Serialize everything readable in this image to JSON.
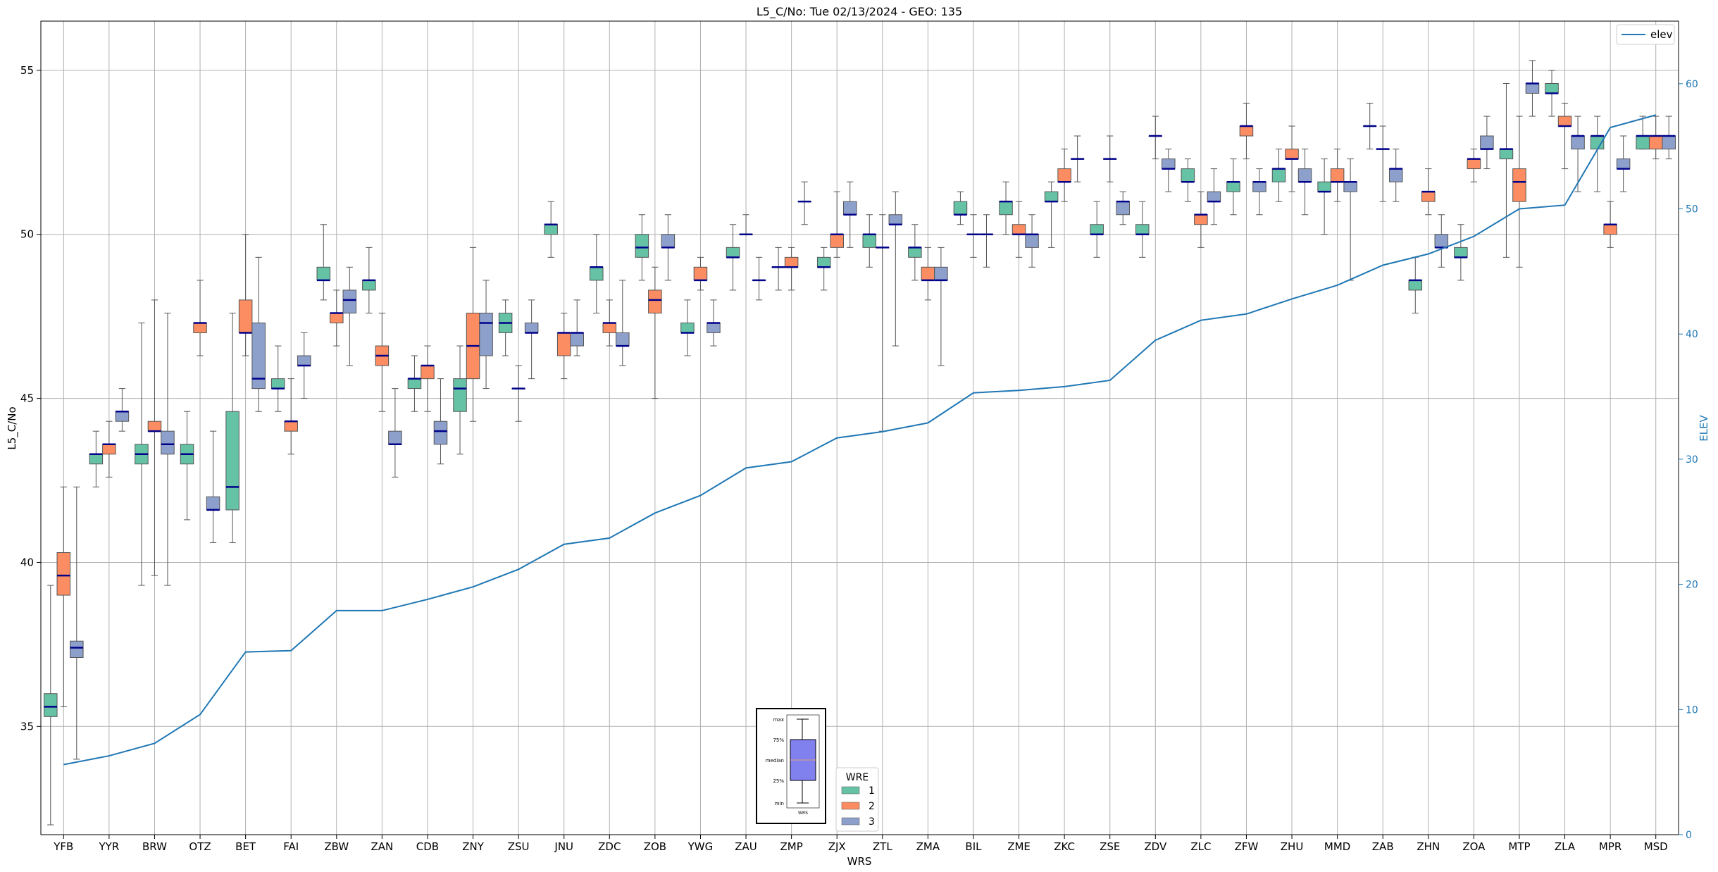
{
  "chart_data": {
    "type": "box",
    "title": "L5_C/No: Tue 02/13/2024 - GEO: 135",
    "xlabel": "WRS",
    "ylabel": "L5_C/No",
    "y2label": "ELEV",
    "ylim": [
      31.7,
      56.5
    ],
    "y2lim": [
      0,
      65
    ],
    "yticks": [
      35,
      40,
      45,
      50,
      55
    ],
    "y2ticks": [
      0,
      10,
      20,
      30,
      40,
      50,
      60
    ],
    "grid": true,
    "colors": {
      "1": "#66c2a5",
      "2": "#fc8d62",
      "3": "#8da0cb",
      "median": "#00008b",
      "elev": "#1f77b4"
    },
    "categories": [
      "YFB",
      "YYR",
      "BRW",
      "OTZ",
      "BET",
      "FAI",
      "ZBW",
      "ZAN",
      "CDB",
      "ZNY",
      "ZSU",
      "JNU",
      "ZDC",
      "ZOB",
      "YWG",
      "ZAU",
      "ZMP",
      "ZJX",
      "ZTL",
      "ZMA",
      "BIL",
      "ZME",
      "ZKC",
      "ZSE",
      "ZDV",
      "ZLC",
      "ZFW",
      "ZHU",
      "MMD",
      "ZAB",
      "ZHN",
      "ZOA",
      "MTP",
      "ZLA",
      "MPR",
      "MSD"
    ],
    "legend_hue": {
      "title": "WRE",
      "entries": [
        "1",
        "2",
        "3"
      ],
      "position": "bottom-center"
    },
    "legend_line": {
      "entries": [
        "elev"
      ],
      "position": "top-right"
    },
    "box_key": {
      "labels": [
        "max",
        "75%",
        "median",
        "25%",
        "min"
      ],
      "xlabel": "WRS"
    },
    "boxes": [
      [
        [
          32.0,
          35.3,
          35.6,
          36.0,
          39.3
        ],
        [
          35.6,
          39.0,
          39.6,
          40.3,
          42.3
        ],
        [
          34.0,
          37.1,
          37.4,
          37.6,
          42.3
        ]
      ],
      [
        [
          42.3,
          43.0,
          43.3,
          43.3,
          44.0
        ],
        [
          42.6,
          43.3,
          43.6,
          43.6,
          44.3
        ],
        [
          44.0,
          44.3,
          44.6,
          44.6,
          45.3
        ]
      ],
      [
        [
          39.3,
          43.0,
          43.3,
          43.6,
          47.3
        ],
        [
          39.6,
          44.0,
          44.0,
          44.3,
          48.0
        ],
        [
          39.3,
          43.3,
          43.6,
          44.0,
          47.6
        ]
      ],
      [
        [
          41.3,
          43.0,
          43.3,
          43.6,
          44.6
        ],
        [
          46.3,
          47.0,
          47.3,
          47.3,
          48.6
        ],
        [
          40.6,
          41.6,
          41.6,
          42.0,
          44.0
        ]
      ],
      [
        [
          40.6,
          41.6,
          42.3,
          44.6,
          47.6
        ],
        [
          46.3,
          47.0,
          47.0,
          48.0,
          50.0
        ],
        [
          44.6,
          45.3,
          45.6,
          47.3,
          49.3
        ]
      ],
      [
        [
          44.6,
          45.3,
          45.3,
          45.6,
          46.6
        ],
        [
          43.3,
          44.0,
          44.3,
          44.3,
          45.6
        ],
        [
          45.0,
          46.0,
          46.0,
          46.3,
          47.0
        ]
      ],
      [
        [
          48.0,
          48.6,
          48.6,
          49.0,
          50.3
        ],
        [
          46.6,
          47.3,
          47.6,
          47.6,
          48.3
        ],
        [
          46.0,
          47.6,
          48.0,
          48.3,
          49.0
        ]
      ],
      [
        [
          47.6,
          48.3,
          48.6,
          48.6,
          49.6
        ],
        [
          44.6,
          46.0,
          46.3,
          46.6,
          47.6
        ],
        [
          42.6,
          43.6,
          43.6,
          44.0,
          45.3
        ]
      ],
      [
        [
          44.6,
          45.3,
          45.6,
          45.6,
          46.3
        ],
        [
          44.6,
          45.6,
          46.0,
          46.0,
          46.6
        ],
        [
          43.0,
          43.6,
          44.0,
          44.3,
          45.6
        ]
      ],
      [
        [
          43.3,
          44.6,
          45.3,
          45.6,
          46.6
        ],
        [
          44.3,
          45.6,
          46.6,
          47.6,
          49.6
        ],
        [
          45.3,
          46.3,
          47.3,
          47.6,
          48.6
        ]
      ],
      [
        [
          46.3,
          47.0,
          47.3,
          47.6,
          48.0
        ],
        [
          44.3,
          45.3,
          45.3,
          45.3,
          46.0
        ],
        [
          45.6,
          47.0,
          47.0,
          47.3,
          48.0
        ]
      ],
      [
        [
          49.3,
          50.0,
          50.3,
          50.3,
          51.0
        ],
        [
          45.6,
          46.3,
          47.0,
          47.0,
          47.6
        ],
        [
          46.3,
          46.6,
          47.0,
          47.0,
          48.0
        ]
      ],
      [
        [
          47.6,
          48.6,
          49.0,
          49.0,
          50.0
        ],
        [
          46.6,
          47.0,
          47.3,
          47.3,
          48.0
        ],
        [
          46.0,
          46.6,
          46.6,
          47.0,
          48.6
        ]
      ],
      [
        [
          48.6,
          49.3,
          49.6,
          50.0,
          50.6
        ],
        [
          45.0,
          47.6,
          48.0,
          48.3,
          49.0
        ],
        [
          48.6,
          49.6,
          49.6,
          50.0,
          50.6
        ]
      ],
      [
        [
          46.3,
          47.0,
          47.0,
          47.3,
          48.0
        ],
        [
          48.3,
          48.6,
          48.6,
          49.0,
          49.3
        ],
        [
          46.6,
          47.0,
          47.3,
          47.3,
          48.0
        ]
      ],
      [
        [
          48.3,
          49.3,
          49.3,
          49.6,
          50.3
        ],
        [
          50.0,
          50.0,
          50.0,
          50.0,
          50.6
        ],
        [
          48.0,
          48.6,
          48.6,
          48.6,
          49.3
        ]
      ],
      [
        [
          48.3,
          49.0,
          49.0,
          49.0,
          49.6
        ],
        [
          48.3,
          49.0,
          49.0,
          49.3,
          49.6
        ],
        [
          50.3,
          51.0,
          51.0,
          51.0,
          51.6
        ]
      ],
      [
        [
          48.3,
          49.0,
          49.0,
          49.3,
          49.6
        ],
        [
          49.3,
          49.6,
          50.0,
          50.0,
          51.3
        ],
        [
          49.6,
          50.6,
          50.6,
          51.0,
          51.6
        ]
      ],
      [
        [
          49.0,
          49.6,
          50.0,
          50.0,
          50.6
        ],
        [
          44.0,
          49.6,
          49.6,
          49.6,
          50.6
        ],
        [
          46.6,
          50.3,
          50.3,
          50.6,
          51.3
        ]
      ],
      [
        [
          48.6,
          49.3,
          49.6,
          49.6,
          50.3
        ],
        [
          48.0,
          48.6,
          48.6,
          49.0,
          49.6
        ],
        [
          46.0,
          48.6,
          48.6,
          49.0,
          49.6
        ]
      ],
      [
        [
          50.3,
          50.6,
          50.6,
          51.0,
          51.3
        ],
        [
          49.3,
          50.0,
          50.0,
          50.0,
          50.6
        ],
        [
          49.0,
          50.0,
          50.0,
          50.0,
          50.6
        ]
      ],
      [
        [
          50.0,
          50.6,
          51.0,
          51.0,
          51.6
        ],
        [
          49.3,
          50.0,
          50.0,
          50.3,
          51.0
        ],
        [
          49.0,
          49.6,
          50.0,
          50.0,
          50.6
        ]
      ],
      [
        [
          49.6,
          51.0,
          51.0,
          51.3,
          51.6
        ],
        [
          51.0,
          51.6,
          51.6,
          52.0,
          52.6
        ],
        [
          51.6,
          52.3,
          52.3,
          52.3,
          53.0
        ]
      ],
      [
        [
          49.3,
          50.0,
          50.0,
          50.3,
          51.0
        ],
        [
          51.6,
          52.3,
          52.3,
          52.3,
          53.0
        ],
        [
          50.3,
          50.6,
          51.0,
          51.0,
          51.3
        ]
      ],
      [
        [
          49.3,
          50.0,
          50.0,
          50.3,
          51.0
        ],
        [
          52.3,
          53.0,
          53.0,
          53.0,
          53.6
        ],
        [
          51.3,
          52.0,
          52.0,
          52.3,
          52.6
        ]
      ],
      [
        [
          51.0,
          51.6,
          51.6,
          52.0,
          52.3
        ],
        [
          49.6,
          50.3,
          50.6,
          50.6,
          51.3
        ],
        [
          50.3,
          51.0,
          51.0,
          51.3,
          52.0
        ]
      ],
      [
        [
          50.6,
          51.3,
          51.6,
          51.6,
          52.3
        ],
        [
          52.3,
          53.0,
          53.3,
          53.3,
          54.0
        ],
        [
          50.6,
          51.3,
          51.6,
          51.6,
          52.0
        ]
      ],
      [
        [
          51.0,
          51.6,
          52.0,
          52.0,
          52.6
        ],
        [
          51.3,
          52.3,
          52.3,
          52.6,
          53.3
        ],
        [
          50.6,
          51.6,
          51.6,
          52.0,
          52.6
        ]
      ],
      [
        [
          50.0,
          51.3,
          51.3,
          51.6,
          52.3
        ],
        [
          51.0,
          51.6,
          51.6,
          52.0,
          52.6
        ],
        [
          48.6,
          51.3,
          51.6,
          51.6,
          52.3
        ]
      ],
      [
        [
          52.6,
          53.3,
          53.3,
          53.3,
          54.0
        ],
        [
          51.0,
          52.6,
          52.6,
          52.6,
          53.3
        ],
        [
          51.0,
          51.6,
          52.0,
          52.0,
          52.6
        ]
      ],
      [
        [
          47.6,
          48.3,
          48.6,
          48.6,
          49.3
        ],
        [
          50.6,
          51.0,
          51.3,
          51.3,
          52.0
        ],
        [
          49.0,
          49.6,
          49.6,
          50.0,
          50.6
        ]
      ],
      [
        [
          48.6,
          49.3,
          49.3,
          49.6,
          50.3
        ],
        [
          51.6,
          52.0,
          52.3,
          52.3,
          52.6
        ],
        [
          52.0,
          52.6,
          52.6,
          53.0,
          53.6
        ]
      ],
      [
        [
          49.3,
          52.3,
          52.6,
          52.6,
          54.6
        ],
        [
          49.0,
          51.0,
          51.6,
          52.0,
          53.6
        ],
        [
          53.6,
          54.3,
          54.6,
          54.6,
          55.3
        ]
      ],
      [
        [
          53.6,
          54.3,
          54.3,
          54.6,
          55.0
        ],
        [
          52.0,
          53.3,
          53.3,
          53.6,
          54.0
        ],
        [
          51.3,
          52.6,
          53.0,
          53.0,
          53.6
        ]
      ],
      [
        [
          51.3,
          52.6,
          53.0,
          53.0,
          53.6
        ],
        [
          49.6,
          50.0,
          50.3,
          50.3,
          51.0
        ],
        [
          51.3,
          52.0,
          52.0,
          52.3,
          53.0
        ]
      ],
      [
        [
          52.6,
          52.6,
          53.0,
          53.0,
          53.6
        ],
        [
          52.3,
          52.6,
          53.0,
          53.0,
          53.6
        ],
        [
          52.3,
          52.6,
          53.0,
          53.0,
          53.6
        ]
      ]
    ],
    "series": [
      {
        "name": "elev",
        "axis": "right",
        "values": [
          5.6,
          6.3,
          7.3,
          9.6,
          14.6,
          14.7,
          17.9,
          17.9,
          18.8,
          19.8,
          21.2,
          23.2,
          23.7,
          25.7,
          27.1,
          29.3,
          29.8,
          31.7,
          32.2,
          32.9,
          35.3,
          35.5,
          35.8,
          36.3,
          39.5,
          41.1,
          41.6,
          42.8,
          43.9,
          45.5,
          46.4,
          47.8,
          50.0,
          50.3,
          56.5,
          57.5
        ]
      }
    ]
  }
}
